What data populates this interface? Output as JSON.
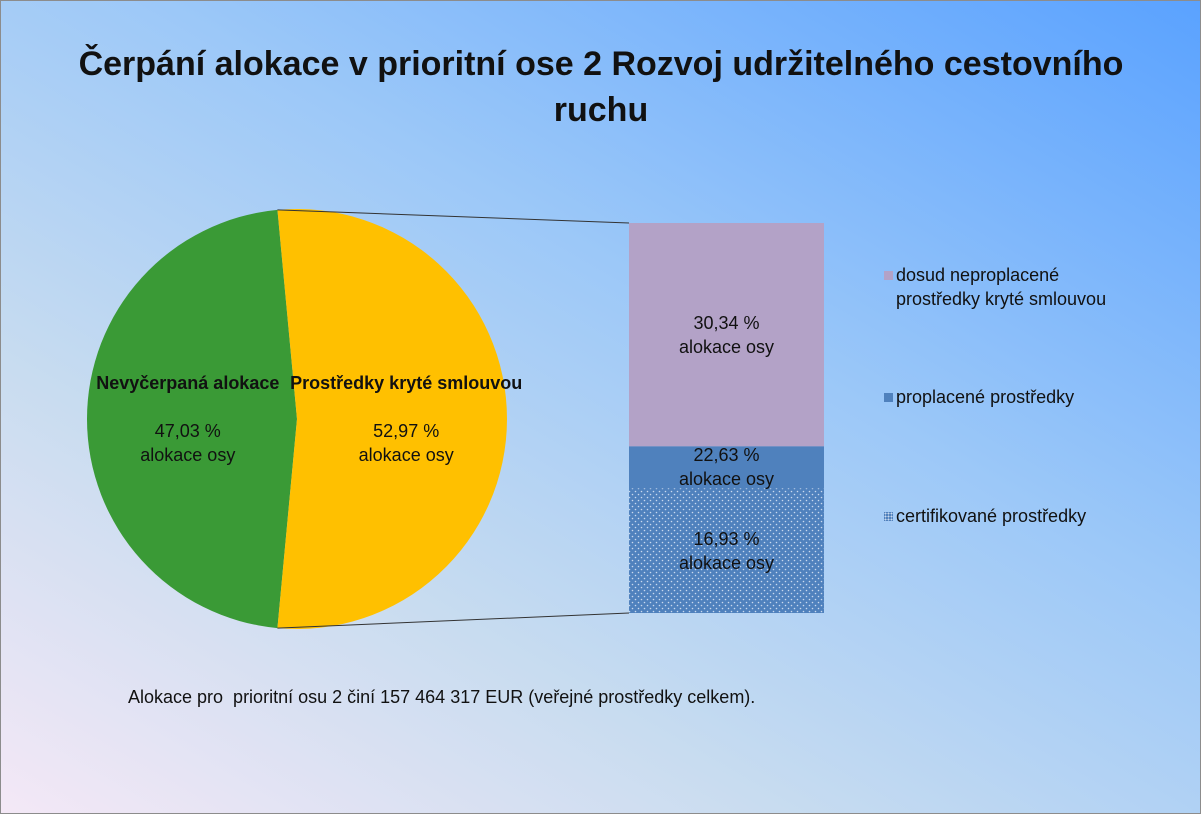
{
  "chart_data": {
    "type": "bar-of-pie",
    "title": "Čerpání alokace v prioritní ose 2 Rozvoj udržitelného cestovního ruchu",
    "pie": {
      "categories": [
        "Nevyčerpaná alokace",
        "Prostředky kryté smlouvou"
      ],
      "values": [
        47.03,
        52.97
      ],
      "value_labels": [
        "47,03 %",
        "52,97 %"
      ],
      "colors": [
        "#3a9a36",
        "#ffc000"
      ]
    },
    "bar": {
      "categories": [
        "dosud neproplacené prostředky kryté smlouvou",
        "proplacené prostředky",
        "certifikované prostředky"
      ],
      "values": [
        30.34,
        22.63,
        16.93
      ],
      "value_labels": [
        "30,34 %",
        "22,63 %",
        "16,93 %"
      ],
      "colors": [
        "#b3a2c7",
        "#4f81bd",
        "#4f81bd"
      ]
    },
    "label_suffix": "alokace osy",
    "note": "Alokace pro  prioritní osu 2 činí 157 464 317 EUR (veřejné prostředky celkem)."
  }
}
